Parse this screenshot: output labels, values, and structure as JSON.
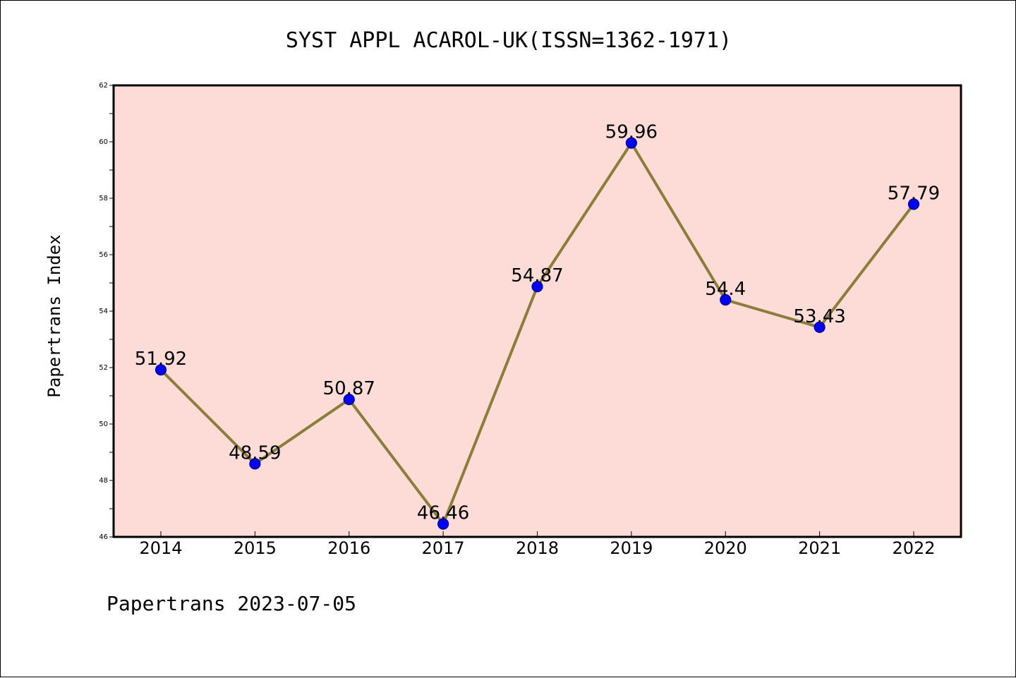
{
  "chart_data": {
    "type": "line",
    "title": "SYST APPL ACAROL-UK(ISSN=1362-1971)",
    "ylabel": "Papertrans Index",
    "xlabel": "",
    "categories": [
      "2014",
      "2015",
      "2016",
      "2017",
      "2018",
      "2019",
      "2020",
      "2021",
      "2022"
    ],
    "series": [
      {
        "values": [
          51.92,
          48.59,
          50.87,
          46.46,
          54.87,
          59.96,
          54.4,
          53.43,
          57.79
        ]
      }
    ],
    "data_labels": [
      "51.92",
      "48.59",
      "50.87",
      "46.46",
      "54.87",
      "59.96",
      "54.4",
      "53.43",
      "57.79"
    ],
    "ylim": [
      46,
      62
    ],
    "yticks": [
      "46",
      "48",
      "50",
      "52",
      "54",
      "56",
      "58",
      "60",
      "62"
    ],
    "footer": "Papertrans 2023-07-05",
    "colors": {
      "plot_background": "#fddcd8",
      "line": "#8b7d3a",
      "marker": "#0000ff",
      "marker_edge": "#000080"
    },
    "grid": false,
    "legend": "none"
  }
}
